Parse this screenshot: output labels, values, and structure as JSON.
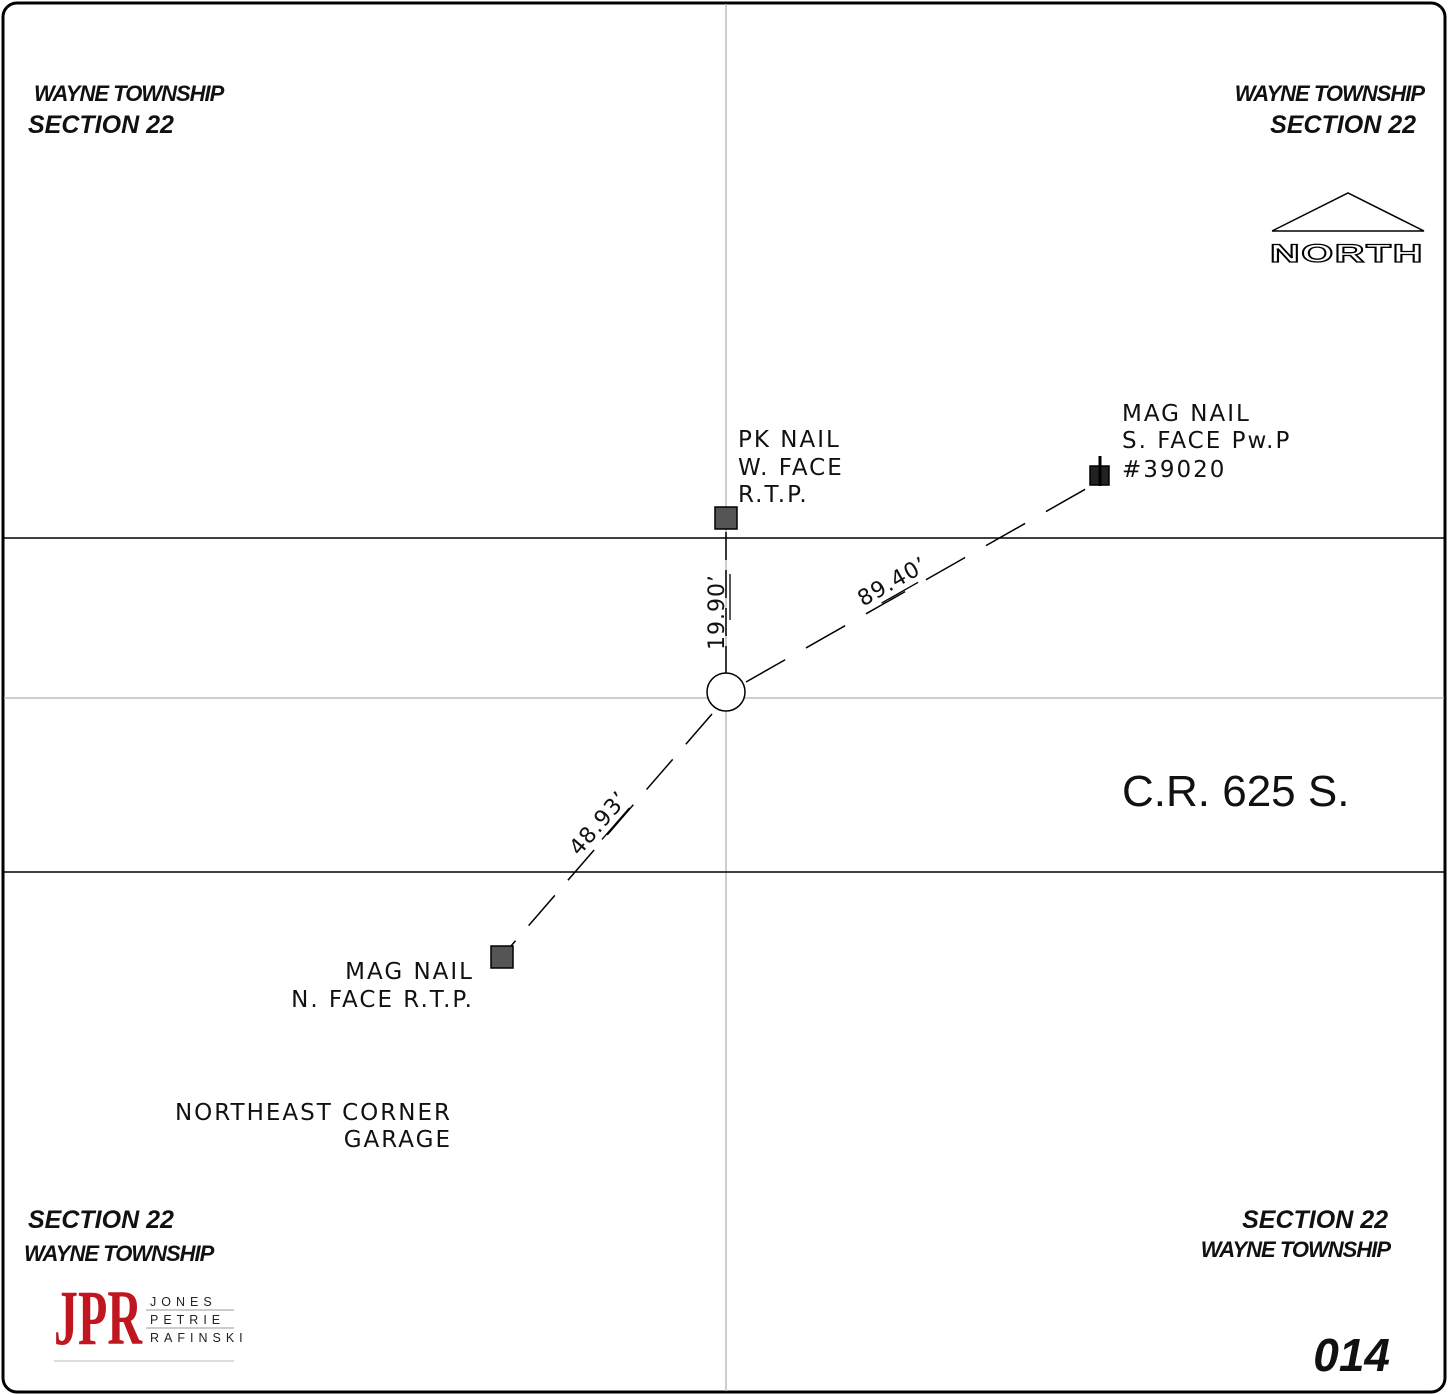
{
  "quadrant_labels": {
    "top_left": {
      "township": "WAYNE TOWNSHIP",
      "section": "SECTION 22"
    },
    "top_right": {
      "township": "WAYNE TOWNSHIP",
      "section": "SECTION 22"
    },
    "bottom_left": {
      "section": "SECTION 22",
      "township": "WAYNE TOWNSHIP"
    },
    "bottom_right": {
      "section": "SECTION 22",
      "township": "WAYNE TOWNSHIP"
    }
  },
  "north_arrow": {
    "label": "NORTH"
  },
  "road": {
    "name": "C.R. 625 S."
  },
  "reference_points": {
    "pk_nail": {
      "line1": "PK NAIL",
      "line2": "W. FACE",
      "line3": "R.T.P."
    },
    "mag_nail_ne": {
      "line1": "MAG NAIL",
      "line2": "S. FACE Pw.P",
      "line3": "#39020"
    },
    "mag_nail_sw": {
      "line1": "MAG NAIL",
      "line2": "N. FACE R.T.P."
    }
  },
  "ties": {
    "north": "19.90’",
    "northeast": "89.40’",
    "southwest": "48.93’"
  },
  "note": {
    "line1": "NORTHEAST CORNER",
    "line2": "GARAGE"
  },
  "sheet_number": "014",
  "logo": {
    "initials": "JPR",
    "line1": "JONES",
    "line2": "PETRIE",
    "line3": "RAFINSKI"
  },
  "colors": {
    "logo_red": "#c0161f",
    "ink": "#111111",
    "marker": "#555555"
  }
}
